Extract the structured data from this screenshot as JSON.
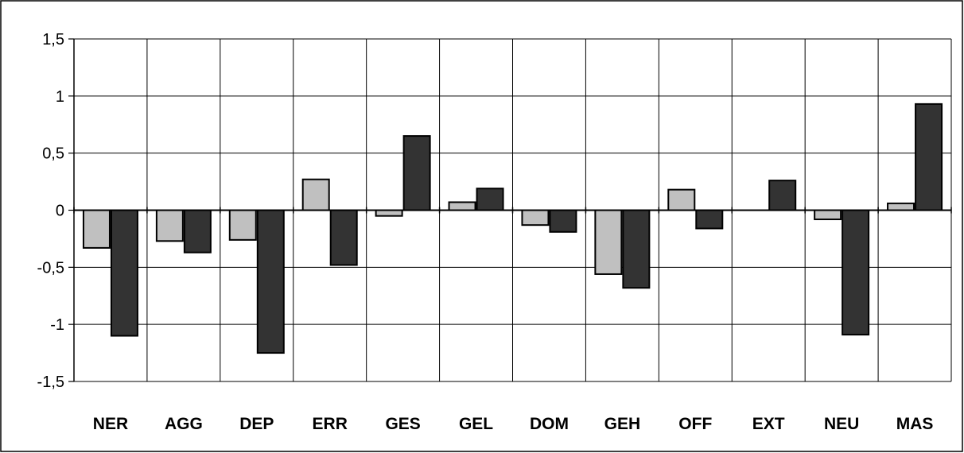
{
  "chart_data": {
    "type": "bar",
    "title": "",
    "xlabel": "",
    "ylabel": "",
    "ylim": [
      -1.5,
      1.5
    ],
    "yticks": [
      1.5,
      1,
      0.5,
      0,
      -0.5,
      -1,
      -1.5
    ],
    "ytick_labels": [
      "1,5",
      "1",
      "0,5",
      "0",
      "-0,5",
      "-1",
      "-1,5"
    ],
    "grid": true,
    "legend": "none",
    "categories": [
      "NER",
      "AGG",
      "DEP",
      "ERR",
      "GES",
      "GEL",
      "DOM",
      "GEH",
      "OFF",
      "EXT",
      "NEU",
      "MAS"
    ],
    "series": [
      {
        "color": "#c0c0c0",
        "values": [
          -0.33,
          -0.27,
          -0.26,
          0.27,
          -0.05,
          0.07,
          -0.13,
          -0.56,
          0.18,
          0.0,
          -0.08,
          0.06
        ]
      },
      {
        "color": "#333333",
        "values": [
          -1.1,
          -0.37,
          -1.25,
          -0.48,
          0.65,
          0.19,
          -0.19,
          -0.68,
          -0.16,
          0.26,
          -1.09,
          0.93
        ]
      }
    ]
  }
}
